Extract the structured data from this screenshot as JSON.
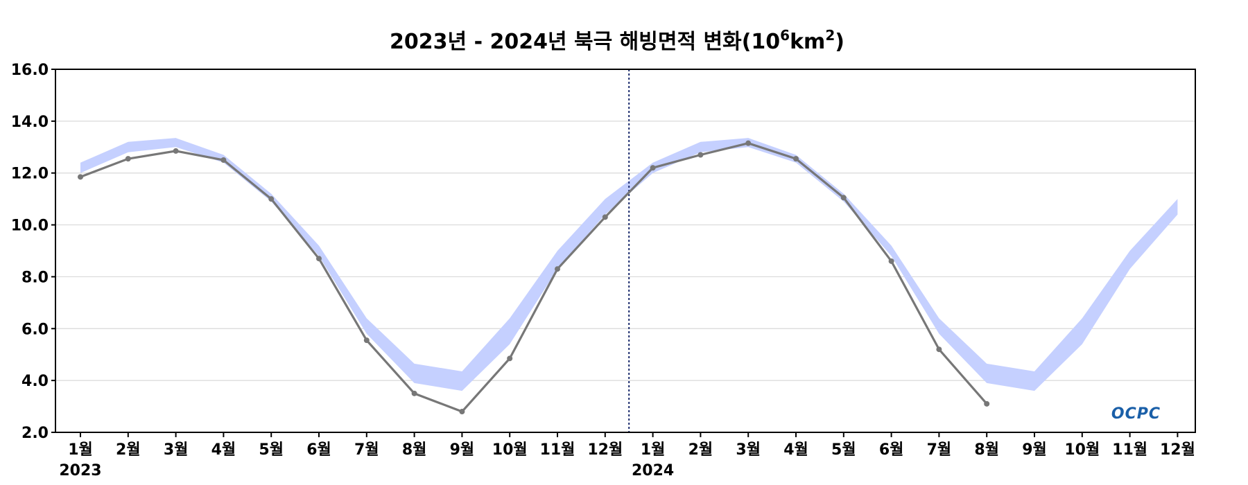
{
  "chart_data": {
    "type": "line",
    "title": "2023년 - 2024년 북극 해빙면적 변화(10⁶km²)",
    "title_parts": {
      "main": "2023년 - 2024년 북극 해빙면적 변화(10",
      "sup1": "6",
      "mid": "km",
      "sup2": "2",
      "end": ")"
    },
    "xlabel": "",
    "ylabel": "",
    "ylim": [
      2.0,
      16.0
    ],
    "y_ticks": [
      "2.0",
      "4.0",
      "6.0",
      "8.0",
      "10.0",
      "12.0",
      "14.0",
      "16.0"
    ],
    "categories": [
      "1월",
      "2월",
      "3월",
      "4월",
      "5월",
      "6월",
      "7월",
      "8월",
      "9월",
      "10월",
      "11월",
      "12월",
      "1월",
      "2월",
      "3월",
      "4월",
      "5월",
      "6월",
      "7월",
      "8월",
      "9월",
      "10월",
      "11월",
      "12월"
    ],
    "year_labels": [
      {
        "label": "2023",
        "index": 0
      },
      {
        "label": "2024",
        "index": 12
      }
    ],
    "year_divider_after_index": 11.5,
    "grid": true,
    "series": [
      {
        "kind": "line",
        "values": [
          11.85,
          12.55,
          12.85,
          12.5,
          11.0,
          8.7,
          5.55,
          3.5,
          2.8,
          4.85,
          8.3,
          10.3,
          12.2,
          12.7,
          13.15,
          12.55,
          11.05,
          8.6,
          5.2,
          3.1,
          null,
          null,
          null,
          null
        ],
        "color": "#777777"
      },
      {
        "kind": "band",
        "lower": [
          12.0,
          12.8,
          13.0,
          12.4,
          10.9,
          8.8,
          5.8,
          3.9,
          3.6,
          5.4,
          8.3,
          10.4,
          12.0,
          12.8,
          13.0,
          12.4,
          10.9,
          8.8,
          5.8,
          3.9,
          3.6,
          5.4,
          8.3,
          10.4
        ],
        "upper": [
          12.4,
          13.2,
          13.35,
          12.7,
          11.2,
          9.2,
          6.4,
          4.65,
          4.35,
          6.4,
          9.0,
          11.0,
          12.4,
          13.2,
          13.35,
          12.7,
          11.2,
          9.2,
          6.4,
          4.65,
          4.35,
          6.4,
          9.0,
          11.0
        ],
        "color": "#c5d0ff"
      }
    ],
    "logo_text": "OCPC"
  }
}
